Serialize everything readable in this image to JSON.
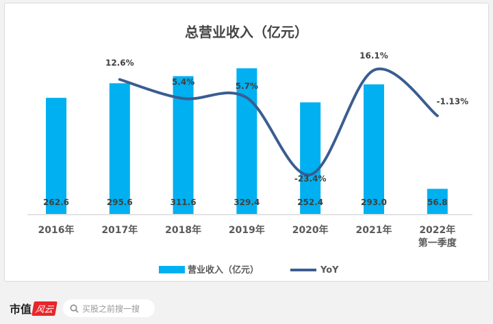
{
  "chart_data": {
    "type": "bar",
    "title": "总营业收入（亿元）",
    "categories": [
      "2016年",
      "2017年",
      "2018年",
      "2019年",
      "2020年",
      "2021年",
      "2022年\n第一季度"
    ],
    "category_lines": [
      [
        "2016年"
      ],
      [
        "2017年"
      ],
      [
        "2018年"
      ],
      [
        "2019年"
      ],
      [
        "2020年"
      ],
      [
        "2021年"
      ],
      [
        "2022年",
        "第一季度"
      ]
    ],
    "series": [
      {
        "name": "营业收入（亿元）",
        "type": "bar",
        "color": "#00b0f0",
        "values": [
          262.6,
          295.6,
          311.6,
          329.4,
          252.4,
          293.0,
          56.8
        ],
        "labels": [
          "262.6",
          "295.6",
          "311.6",
          "329.4",
          "252.4",
          "293.0",
          "56.8"
        ]
      },
      {
        "name": "YoY",
        "type": "line",
        "color": "#3a5d91",
        "values": [
          null,
          12.6,
          5.4,
          5.7,
          -23.4,
          16.1,
          -1.13
        ],
        "labels": [
          "",
          "12.6%",
          "5.4%",
          "5.7%",
          "-23.4%",
          "16.1%",
          "-1.13%"
        ]
      }
    ],
    "legend": "bottom",
    "grid": false
  },
  "footer": {
    "brand": "市值",
    "brand_logo": "风云",
    "search_placeholder": "买股之前搜一搜"
  }
}
